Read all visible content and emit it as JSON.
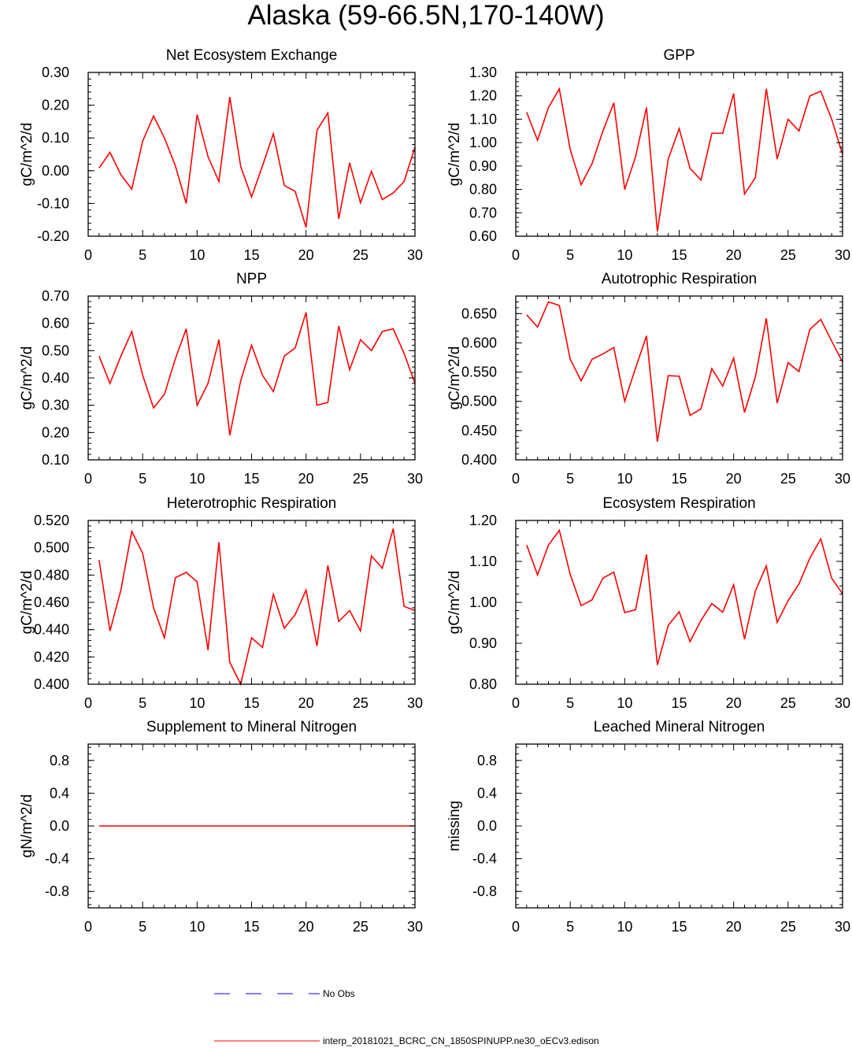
{
  "figure": {
    "title": "Alaska (59-66.5N,170-140W)"
  },
  "legend": {
    "obs_label": "No Obs",
    "model_label": "interp_20181021_BCRC_CN_1850SPINUPP.ne30_oECv3.edison",
    "obs_color": "#0000ff",
    "model_color": "#ff0000"
  },
  "chart_data": [
    {
      "type": "line",
      "title": "Net Ecosystem Exchange",
      "ylabel": "gC/m^2/d",
      "xlabel": "",
      "xlim": [
        0,
        30
      ],
      "ylim": [
        -0.2,
        0.3
      ],
      "xticks": [
        "0",
        "5",
        "10",
        "15",
        "20",
        "25",
        "30"
      ],
      "yticks": [
        -0.2,
        -0.1,
        0.0,
        0.1,
        0.2,
        0.3
      ],
      "yticklabels": [
        "-0.20",
        "-0.10",
        "0.00",
        "0.10",
        "0.20",
        "0.30"
      ],
      "x": [
        1,
        2,
        3,
        4,
        5,
        6,
        7,
        8,
        9,
        10,
        11,
        12,
        13,
        14,
        15,
        16,
        17,
        18,
        19,
        20,
        21,
        22,
        23,
        24,
        25,
        26,
        27,
        28,
        29,
        30
      ],
      "series": [
        {
          "name": "interp_20181021_BCRC_CN_1850SPINUPP.ne30_oECv3.edison",
          "color": "#ff0000",
          "values": [
            0.008,
            0.056,
            -0.012,
            -0.056,
            0.09,
            0.167,
            0.1,
            0.015,
            -0.1,
            0.171,
            0.043,
            -0.033,
            0.225,
            0.013,
            -0.08,
            0.015,
            0.113,
            -0.045,
            -0.063,
            -0.173,
            0.123,
            0.176,
            -0.147,
            0.024,
            -0.098,
            -0.002,
            -0.088,
            -0.068,
            -0.033,
            0.072
          ]
        }
      ]
    },
    {
      "type": "line",
      "title": "GPP",
      "ylabel": "gC/m^2/d",
      "xlabel": "",
      "xlim": [
        0,
        30
      ],
      "ylim": [
        0.6,
        1.3
      ],
      "xticks": [
        "0",
        "5",
        "10",
        "15",
        "20",
        "25",
        "30"
      ],
      "yticks": [
        0.6,
        0.7,
        0.8,
        0.9,
        1.0,
        1.1,
        1.2,
        1.3
      ],
      "yticklabels": [
        "0.60",
        "0.70",
        "0.80",
        "0.90",
        "1.00",
        "1.10",
        "1.20",
        "1.30"
      ],
      "x": [
        1,
        2,
        3,
        4,
        5,
        6,
        7,
        8,
        9,
        10,
        11,
        12,
        13,
        14,
        15,
        16,
        17,
        18,
        19,
        20,
        21,
        22,
        23,
        24,
        25,
        26,
        27,
        28,
        29,
        30
      ],
      "series": [
        {
          "name": "interp_20181021_BCRC_CN_1850SPINUPP.ne30_oECv3.edison",
          "color": "#ff0000",
          "values": [
            1.13,
            1.01,
            1.15,
            1.23,
            0.97,
            0.82,
            0.91,
            1.05,
            1.17,
            0.8,
            0.94,
            1.15,
            0.62,
            0.93,
            1.06,
            0.89,
            0.84,
            1.04,
            1.04,
            1.21,
            0.78,
            0.85,
            1.23,
            0.93,
            1.1,
            1.05,
            1.2,
            1.22,
            1.1,
            0.95
          ]
        }
      ]
    },
    {
      "type": "line",
      "title": "NPP",
      "ylabel": "gC/m^2/d",
      "xlabel": "",
      "xlim": [
        0,
        30
      ],
      "ylim": [
        0.1,
        0.7
      ],
      "xticks": [
        "0",
        "5",
        "10",
        "15",
        "20",
        "25",
        "30"
      ],
      "yticks": [
        0.1,
        0.2,
        0.3,
        0.4,
        0.5,
        0.6,
        0.7
      ],
      "yticklabels": [
        "0.10",
        "0.20",
        "0.30",
        "0.40",
        "0.50",
        "0.60",
        "0.70"
      ],
      "x": [
        1,
        2,
        3,
        4,
        5,
        6,
        7,
        8,
        9,
        10,
        11,
        12,
        13,
        14,
        15,
        16,
        17,
        18,
        19,
        20,
        21,
        22,
        23,
        24,
        25,
        26,
        27,
        28,
        29,
        30
      ],
      "series": [
        {
          "name": "interp_20181021_BCRC_CN_1850SPINUPP.ne30_oECv3.edison",
          "color": "#ff0000",
          "values": [
            0.48,
            0.38,
            0.48,
            0.57,
            0.41,
            0.29,
            0.34,
            0.47,
            0.58,
            0.3,
            0.38,
            0.54,
            0.19,
            0.39,
            0.52,
            0.41,
            0.35,
            0.48,
            0.51,
            0.64,
            0.3,
            0.31,
            0.59,
            0.43,
            0.54,
            0.5,
            0.57,
            0.58,
            0.49,
            0.38
          ]
        }
      ]
    },
    {
      "type": "line",
      "title": "Autotrophic Respiration",
      "ylabel": "gC/m^2/d",
      "xlabel": "",
      "xlim": [
        0,
        30
      ],
      "ylim": [
        0.4,
        0.68
      ],
      "xticks": [
        "0",
        "5",
        "10",
        "15",
        "20",
        "25",
        "30"
      ],
      "yticks": [
        0.4,
        0.45,
        0.5,
        0.55,
        0.6,
        0.65
      ],
      "yticklabels": [
        "0.400",
        "0.450",
        "0.500",
        "0.550",
        "0.600",
        "0.650"
      ],
      "x": [
        1,
        2,
        3,
        4,
        5,
        6,
        7,
        8,
        9,
        10,
        11,
        12,
        13,
        14,
        15,
        16,
        17,
        18,
        19,
        20,
        21,
        22,
        23,
        24,
        25,
        26,
        27,
        28,
        29,
        30
      ],
      "series": [
        {
          "name": "interp_20181021_BCRC_CN_1850SPINUPP.ne30_oECv3.edison",
          "color": "#ff0000",
          "values": [
            0.648,
            0.627,
            0.67,
            0.664,
            0.572,
            0.535,
            0.572,
            0.581,
            0.592,
            0.5,
            0.557,
            0.612,
            0.431,
            0.544,
            0.543,
            0.476,
            0.487,
            0.556,
            0.526,
            0.574,
            0.481,
            0.542,
            0.642,
            0.497,
            0.566,
            0.551,
            0.623,
            0.64,
            0.603,
            0.567
          ]
        }
      ]
    },
    {
      "type": "line",
      "title": "Heterotrophic Respiration",
      "ylabel": "gC/m^2/d",
      "xlabel": "",
      "xlim": [
        0,
        30
      ],
      "ylim": [
        0.4,
        0.52
      ],
      "xticks": [
        "0",
        "5",
        "10",
        "15",
        "20",
        "25",
        "30"
      ],
      "yticks": [
        0.4,
        0.42,
        0.44,
        0.46,
        0.48,
        0.5,
        0.52
      ],
      "yticklabels": [
        "0.400",
        "0.420",
        "0.440",
        "0.460",
        "0.480",
        "0.500",
        "0.520"
      ],
      "x": [
        1,
        2,
        3,
        4,
        5,
        6,
        7,
        8,
        9,
        10,
        11,
        12,
        13,
        14,
        15,
        16,
        17,
        18,
        19,
        20,
        21,
        22,
        23,
        24,
        25,
        26,
        27,
        28,
        29,
        30
      ],
      "series": [
        {
          "name": "interp_20181021_BCRC_CN_1850SPINUPP.ne30_oECv3.edison",
          "color": "#ff0000",
          "values": [
            0.491,
            0.439,
            0.469,
            0.512,
            0.496,
            0.456,
            0.434,
            0.478,
            0.482,
            0.475,
            0.425,
            0.504,
            0.416,
            0.4,
            0.434,
            0.427,
            0.466,
            0.441,
            0.451,
            0.469,
            0.428,
            0.487,
            0.446,
            0.454,
            0.439,
            0.494,
            0.485,
            0.514,
            0.457,
            0.454
          ]
        }
      ]
    },
    {
      "type": "line",
      "title": "Ecosystem Respiration",
      "ylabel": "gC/m^2/d",
      "xlabel": "",
      "xlim": [
        0,
        30
      ],
      "ylim": [
        0.8,
        1.2
      ],
      "xticks": [
        "0",
        "5",
        "10",
        "15",
        "20",
        "25",
        "30"
      ],
      "yticks": [
        0.8,
        0.9,
        1.0,
        1.1,
        1.2
      ],
      "yticklabels": [
        "0.80",
        "0.90",
        "1.00",
        "1.10",
        "1.20"
      ],
      "x": [
        1,
        2,
        3,
        4,
        5,
        6,
        7,
        8,
        9,
        10,
        11,
        12,
        13,
        14,
        15,
        16,
        17,
        18,
        19,
        20,
        21,
        22,
        23,
        24,
        25,
        26,
        27,
        28,
        29,
        30
      ],
      "series": [
        {
          "name": "interp_20181021_BCRC_CN_1850SPINUPP.ne30_oECv3.edison",
          "color": "#ff0000",
          "values": [
            1.14,
            1.067,
            1.14,
            1.176,
            1.068,
            0.992,
            1.006,
            1.059,
            1.074,
            0.975,
            0.982,
            1.117,
            0.847,
            0.944,
            0.977,
            0.904,
            0.956,
            0.997,
            0.976,
            1.043,
            0.91,
            1.028,
            1.089,
            0.951,
            1.004,
            1.045,
            1.108,
            1.155,
            1.059,
            1.021
          ]
        }
      ]
    },
    {
      "type": "line",
      "title": "Supplement to Mineral Nitrogen",
      "ylabel": "gN/m^2/d",
      "xlabel": "",
      "xlim": [
        0,
        30
      ],
      "ylim": [
        -1.0,
        1.0
      ],
      "xticks": [
        "0",
        "5",
        "10",
        "15",
        "20",
        "25",
        "30"
      ],
      "yticks": [
        -0.8,
        -0.4,
        0.0,
        0.4,
        0.8
      ],
      "yticklabels": [
        "-0.8",
        "-0.4",
        "0.0",
        "0.4",
        "0.8"
      ],
      "x": [
        1,
        2,
        3,
        4,
        5,
        6,
        7,
        8,
        9,
        10,
        11,
        12,
        13,
        14,
        15,
        16,
        17,
        18,
        19,
        20,
        21,
        22,
        23,
        24,
        25,
        26,
        27,
        28,
        29,
        30
      ],
      "series": [
        {
          "name": "interp_20181021_BCRC_CN_1850SPINUPP.ne30_oECv3.edison",
          "color": "#ff0000",
          "values": [
            0,
            0,
            0,
            0,
            0,
            0,
            0,
            0,
            0,
            0,
            0,
            0,
            0,
            0,
            0,
            0,
            0,
            0,
            0,
            0,
            0,
            0,
            0,
            0,
            0,
            0,
            0,
            0,
            0,
            0
          ]
        }
      ]
    },
    {
      "type": "line",
      "title": "Leached Mineral Nitrogen",
      "ylabel": "missing",
      "xlabel": "",
      "xlim": [
        0,
        30
      ],
      "ylim": [
        -1.0,
        1.0
      ],
      "xticks": [
        "0",
        "5",
        "10",
        "15",
        "20",
        "25",
        "30"
      ],
      "yticks": [
        -0.8,
        -0.4,
        0.0,
        0.4,
        0.8
      ],
      "yticklabels": [
        "-0.8",
        "-0.4",
        "0.0",
        "0.4",
        "0.8"
      ],
      "x": [],
      "series": []
    }
  ]
}
